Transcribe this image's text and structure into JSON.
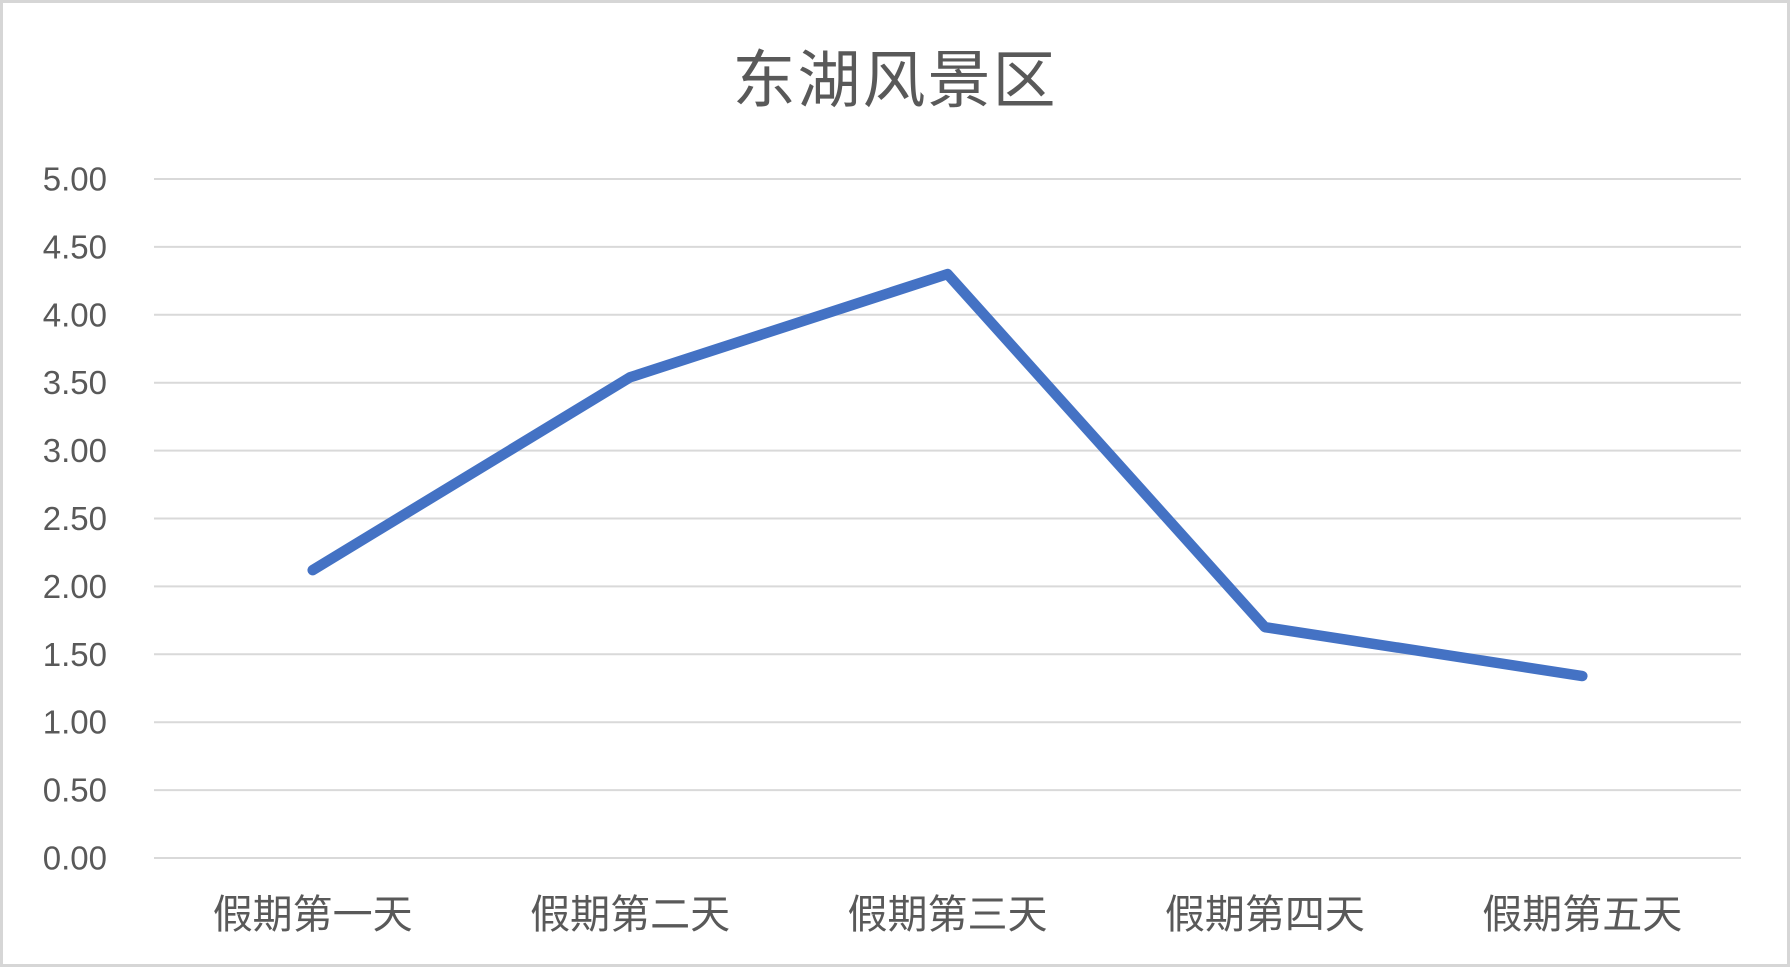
{
  "chart_data": {
    "type": "line",
    "title": "东湖风景区",
    "categories": [
      "假期第一天",
      "假期第二天",
      "假期第三天",
      "假期第四天",
      "假期第五天"
    ],
    "series": [
      {
        "name": "东湖风景区",
        "values": [
          2.12,
          3.54,
          4.3,
          1.7,
          1.34
        ]
      }
    ],
    "xlabel": "",
    "ylabel": "",
    "ylim": [
      0,
      5
    ],
    "ytick_step": 0.5,
    "ytick_labels": [
      "0.00",
      "0.50",
      "1.00",
      "1.50",
      "2.00",
      "2.50",
      "3.00",
      "3.50",
      "4.00",
      "4.50",
      "5.00"
    ],
    "grid": true,
    "legend_position": "none",
    "colors": {
      "line": "#4472C4",
      "gridline": "#D9D9D9",
      "label": "#595959",
      "title": "#595959",
      "background": "#FFFFFF",
      "frame_border": "#D6D6D6"
    }
  }
}
